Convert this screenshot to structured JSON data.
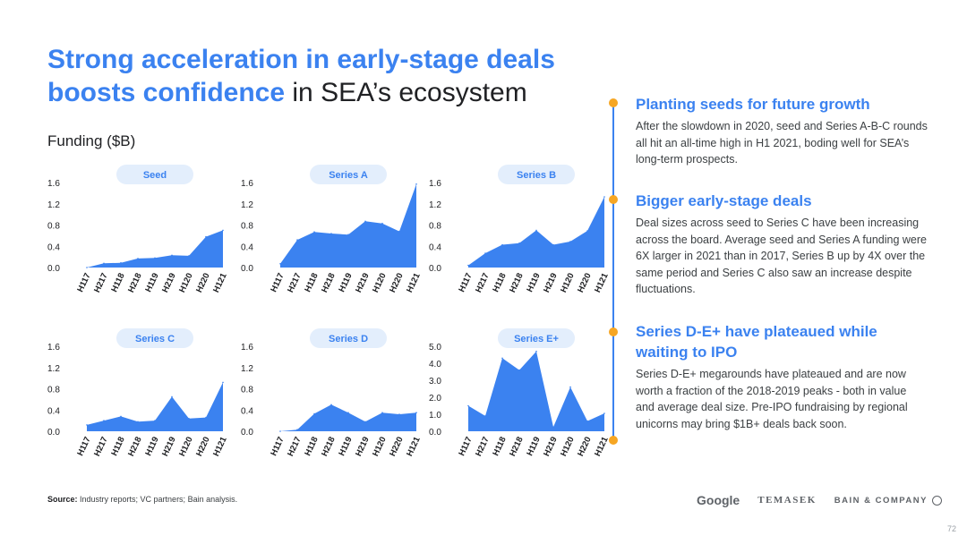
{
  "title": {
    "line1": "Strong acceleration in early-stage deals",
    "line2_highlight": "boosts confidence",
    "line2_rest": " in SEA’s ecosystem"
  },
  "funding_label": "Funding ($B)",
  "colors": {
    "accent": "#3b82f0",
    "fill": "#3b82f0",
    "pill": "#e3eefc",
    "timeline_dot": "#f6a623"
  },
  "chart_data": [
    {
      "type": "area",
      "title": "Seed",
      "x": [
        "H117",
        "H217",
        "H118",
        "H218",
        "H119",
        "H219",
        "H120",
        "H220",
        "H121"
      ],
      "values": [
        0.0,
        0.08,
        0.09,
        0.17,
        0.18,
        0.23,
        0.22,
        0.58,
        0.7
      ],
      "yticks": [
        "1.6",
        "1.2",
        "0.8",
        "0.4",
        "0.0"
      ],
      "ylim": [
        0,
        1.6
      ]
    },
    {
      "type": "area",
      "title": "Series A",
      "x": [
        "H117",
        "H217",
        "H118",
        "H218",
        "H119",
        "H219",
        "H120",
        "H220",
        "H121"
      ],
      "values": [
        0.07,
        0.52,
        0.67,
        0.64,
        0.62,
        0.87,
        0.83,
        0.68,
        1.57
      ],
      "yticks": [
        "1.6",
        "1.2",
        "0.8",
        "0.4",
        "0.0"
      ],
      "ylim": [
        0,
        1.6
      ]
    },
    {
      "type": "area",
      "title": "Series B",
      "x": [
        "H117",
        "H217",
        "H118",
        "H218",
        "H119",
        "H219",
        "H120",
        "H220",
        "H121"
      ],
      "values": [
        0.04,
        0.27,
        0.43,
        0.46,
        0.7,
        0.43,
        0.49,
        0.69,
        1.33
      ],
      "yticks": [
        "1.6",
        "1.2",
        "0.8",
        "0.4",
        "0.0"
      ],
      "ylim": [
        0,
        1.6
      ]
    },
    {
      "type": "area",
      "title": "Series C",
      "x": [
        "H117",
        "H217",
        "H118",
        "H218",
        "H119",
        "H219",
        "H120",
        "H220",
        "H121"
      ],
      "values": [
        0.12,
        0.2,
        0.28,
        0.18,
        0.2,
        0.65,
        0.24,
        0.26,
        0.92
      ],
      "yticks": [
        "1.6",
        "1.2",
        "0.8",
        "0.4",
        "0.0"
      ],
      "ylim": [
        0,
        1.6
      ]
    },
    {
      "type": "area",
      "title": "Series D",
      "x": [
        "H117",
        "H217",
        "H118",
        "H218",
        "H119",
        "H219",
        "H120",
        "H220",
        "H121"
      ],
      "values": [
        0.0,
        0.03,
        0.33,
        0.5,
        0.35,
        0.18,
        0.35,
        0.32,
        0.35
      ],
      "yticks": [
        "1.6",
        "1.2",
        "0.8",
        "0.4",
        "0.0"
      ],
      "ylim": [
        0,
        1.6
      ]
    },
    {
      "type": "area",
      "title": "Series E+",
      "x": [
        "H117",
        "H217",
        "H118",
        "H218",
        "H119",
        "H219",
        "H120",
        "H220",
        "H121"
      ],
      "values": [
        1.5,
        0.9,
        4.3,
        3.6,
        4.7,
        0.25,
        2.6,
        0.6,
        1.05
      ],
      "yticks": [
        "5.0",
        "4.0",
        "3.0",
        "2.0",
        "1.0",
        "0.0"
      ],
      "ylim": [
        0,
        5.0
      ]
    }
  ],
  "sections": [
    {
      "heading": "Planting seeds for future growth",
      "body": "After the slowdown in 2020, seed and Series A-B-C rounds all hit an all-time high in H1 2021, boding well for SEA’s long-term prospects."
    },
    {
      "heading": "Bigger early-stage deals",
      "body": "Deal sizes across seed to Series C have been increasing across the board. Average seed and Series A funding were 6X larger in 2021 than in 2017, Series B up by 4X over the same period and Series C also saw an increase despite fluctuations."
    },
    {
      "heading": "Series D-E+ have plateaued while waiting to IPO",
      "body": "Series D-E+ megarounds have plateaued and are now worth a fraction of the 2018-2019 peaks - both in value and average deal size. Pre-IPO fundraising by regional unicorns may bring $1B+ deals back soon."
    }
  ],
  "source": {
    "label": "Source:",
    "text": " Industry reports; VC partners; Bain analysis."
  },
  "logos": {
    "google": "Google",
    "temasek": "TEMASEK",
    "bain": "BAIN & COMPANY"
  },
  "page_number": "72"
}
